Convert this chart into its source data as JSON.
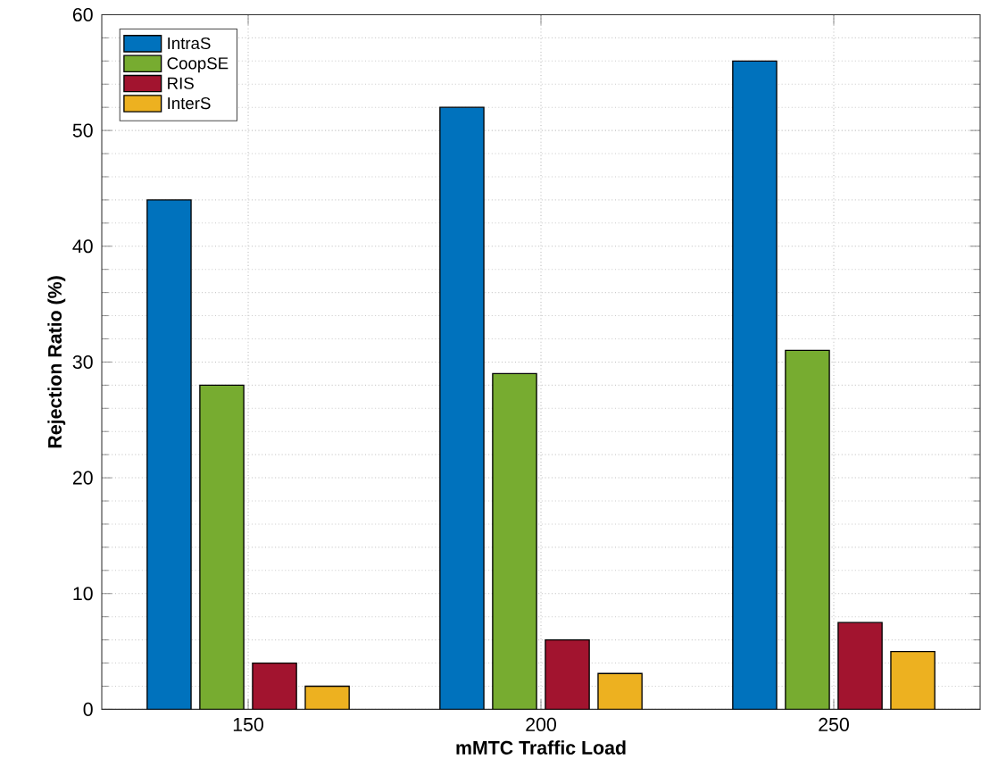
{
  "chart_data": {
    "type": "bar",
    "xlabel": "mMTC Traffic Load",
    "ylabel": "Rejection Ratio (%)",
    "categories": [
      "150",
      "200",
      "250"
    ],
    "series": [
      {
        "name": "IntraS",
        "color": "#0072bd",
        "values": [
          44,
          52,
          56
        ]
      },
      {
        "name": "CoopSE",
        "color": "#77ac30",
        "values": [
          28,
          29,
          31
        ]
      },
      {
        "name": "RIS",
        "color": "#a2142f",
        "values": [
          4,
          6,
          7.5
        ]
      },
      {
        "name": "InterS",
        "color": "#edb120",
        "values": [
          2,
          3.1,
          5
        ]
      }
    ],
    "ylim": [
      0,
      60
    ],
    "yticks": [
      0,
      10,
      20,
      30,
      40,
      50,
      60
    ],
    "grid": true,
    "legend": "top left"
  }
}
